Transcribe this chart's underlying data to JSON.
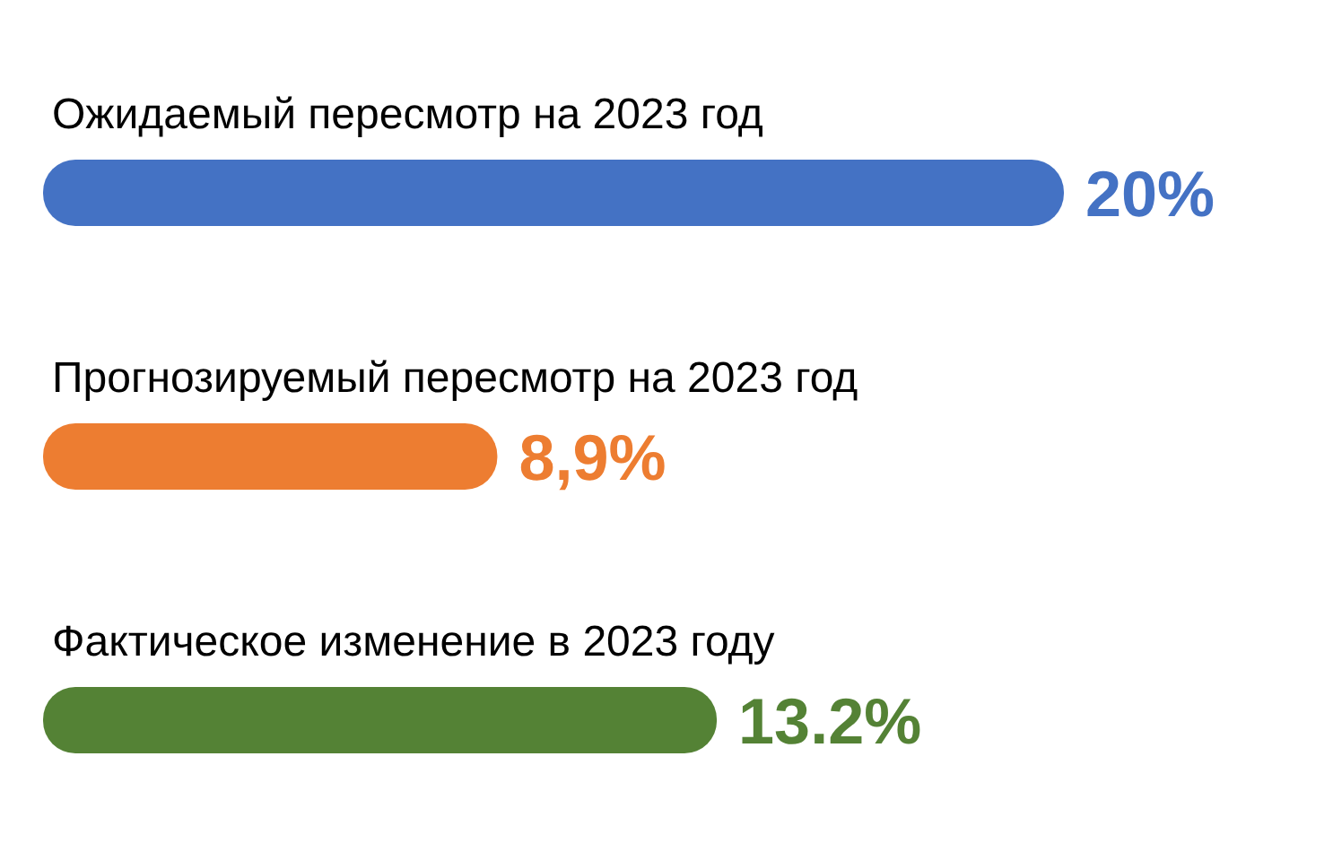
{
  "chart_data": {
    "type": "bar",
    "orientation": "horizontal",
    "categories": [
      "Ожидаемый пересмотр на 2023 год",
      "Прогнозируемый пересмотр на 2023 год",
      "Фактическое изменение в 2023 году"
    ],
    "values": [
      20,
      8.9,
      13.2
    ],
    "colors": [
      "#4472c4",
      "#ed7d31",
      "#548235"
    ],
    "value_labels": [
      "20%",
      "8,9%",
      "13.2%"
    ]
  }
}
